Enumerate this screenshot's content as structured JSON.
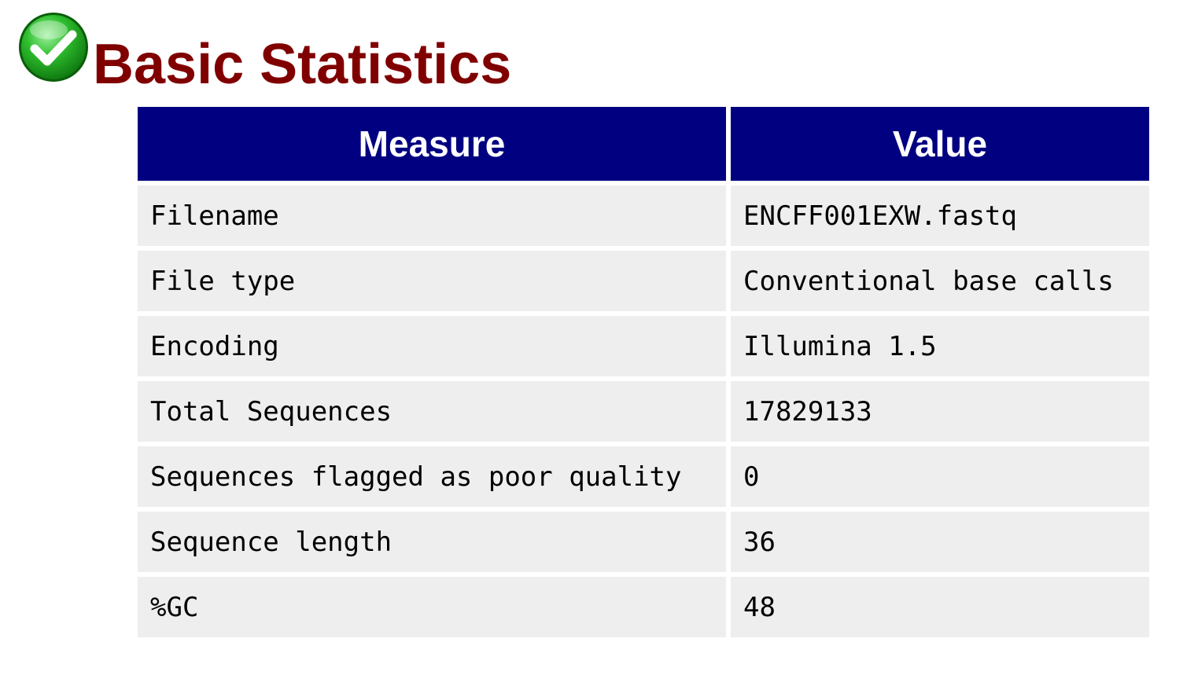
{
  "header": {
    "status_icon": "green-check-circle-icon",
    "title": "Basic Statistics"
  },
  "table": {
    "columns": [
      "Measure",
      "Value"
    ],
    "rows": [
      [
        "Filename",
        "ENCFF001EXW.fastq"
      ],
      [
        "File type",
        "Conventional base calls"
      ],
      [
        "Encoding",
        "Illumina 1.5"
      ],
      [
        "Total Sequences",
        "17829133"
      ],
      [
        "Sequences flagged as poor quality",
        "0"
      ],
      [
        "Sequence length",
        "36"
      ],
      [
        "%GC",
        "48"
      ]
    ]
  },
  "colors": {
    "title": "#800000",
    "header_bg": "#000080",
    "header_text": "#ffffff",
    "cell_bg": "#eeeeee",
    "check_green": "#22aa22"
  }
}
